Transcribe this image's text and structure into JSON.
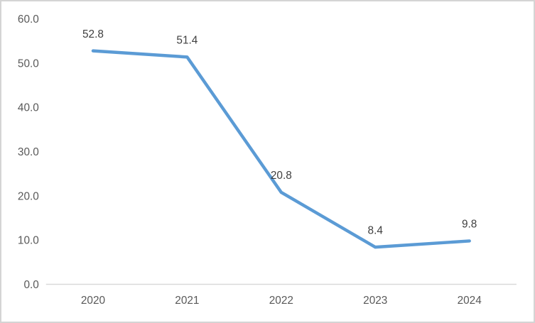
{
  "chart_data": {
    "type": "line",
    "title": "",
    "xlabel": "",
    "ylabel": "",
    "categories": [
      "2020",
      "2021",
      "2022",
      "2023",
      "2024"
    ],
    "values": [
      52.8,
      51.4,
      20.8,
      8.4,
      9.8
    ],
    "data_labels": [
      "52.8",
      "51.4",
      "20.8",
      "8.4",
      "9.8"
    ],
    "yticks": [
      0,
      10,
      20,
      30,
      40,
      50,
      60
    ],
    "ytick_labels": [
      "0.0",
      "10.0",
      "20.0",
      "30.0",
      "40.0",
      "50.0",
      "60.0"
    ],
    "ylim": [
      0,
      60
    ],
    "grid": false,
    "legend_position": "none",
    "colors": {
      "line": "#5B9BD5",
      "axis_line": "#d9d9d9",
      "tick_label": "#595959",
      "data_label": "#3f3f3f",
      "frame_border": "#d4d4d4",
      "background": "#ffffff"
    }
  }
}
